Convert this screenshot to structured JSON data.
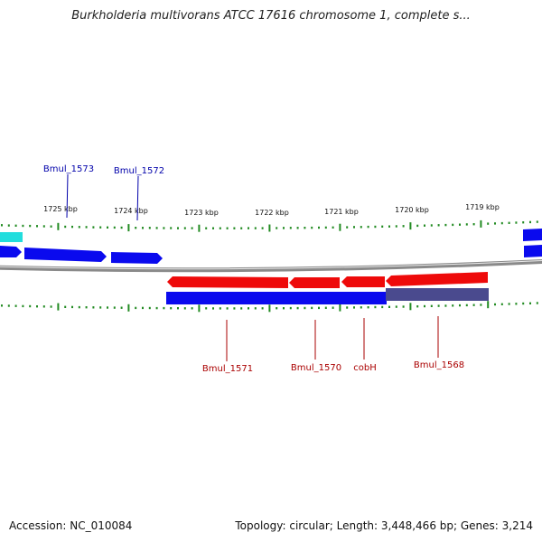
{
  "title": "Burkholderia multivorans ATCC 17616 chromosome 1, complete s...",
  "footer": {
    "accession": "Accession: NC_010084",
    "summary": "Topology: circular; Length: 3,448,466 bp; Genes: 3,214"
  },
  "scale": {
    "unit": "kbp",
    "labels": [
      "1725 kbp",
      "1724 kbp",
      "1723 kbp",
      "1722 kbp",
      "1721 kbp",
      "1720 kbp",
      "1719 kbp"
    ]
  },
  "colors": {
    "forward_gene": "#0a0aee",
    "reverse_gene": "#ee0a0a",
    "cds_reverse_bar": "#0a0aee",
    "cds_shaded": "#4a4a8e",
    "partial_gene": "#22dddd",
    "backbone": "#8a8a8a",
    "ticks": "#228b22",
    "forward_label": "#0000aa",
    "reverse_label": "#aa0000"
  },
  "gene_labels": [
    {
      "name": "Bmul_1573",
      "strand": "forward"
    },
    {
      "name": "Bmul_1572",
      "strand": "forward"
    },
    {
      "name": "Bmul_1571",
      "strand": "reverse"
    },
    {
      "name": "Bmul_1570",
      "strand": "reverse"
    },
    {
      "name": "cobH",
      "strand": "reverse"
    },
    {
      "name": "Bmul_1568",
      "strand": "reverse"
    }
  ]
}
